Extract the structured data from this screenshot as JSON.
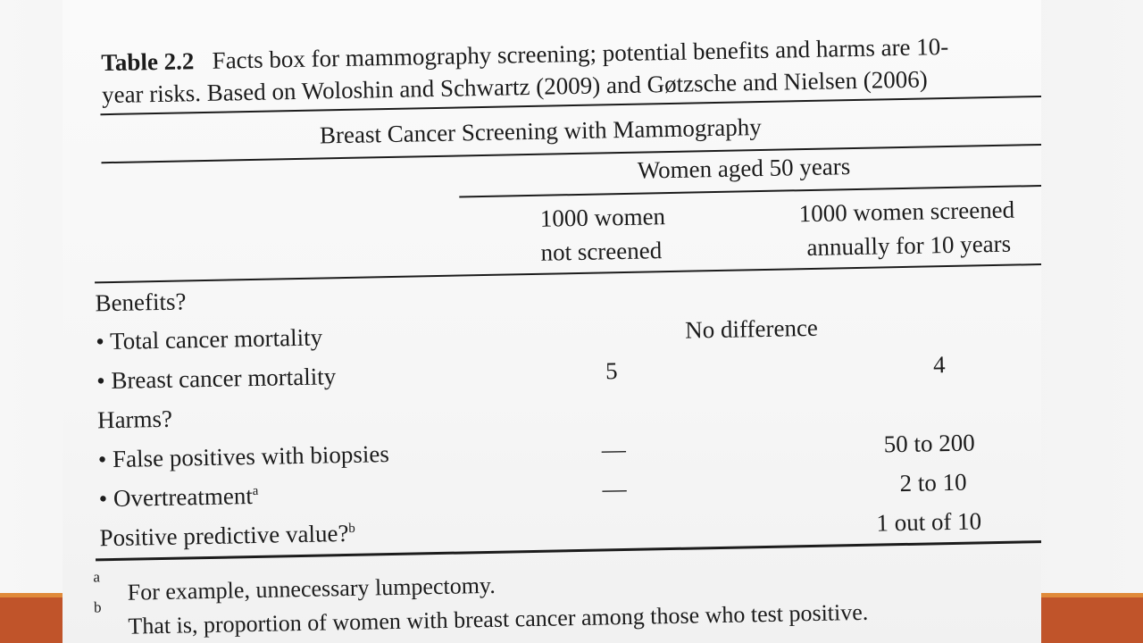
{
  "caption": {
    "label": "Table 2.2",
    "line1": "Facts box for mammography screening; potential benefits and harms are 10-",
    "line2": "year risks. Based on Woloshin and Schwartz (2009) and Gøtzsche and Nielsen (2006)"
  },
  "table": {
    "title": "Breast Cancer Screening with Mammography",
    "group_header": "Women aged 50 years",
    "col1_line1": "1000 women",
    "col1_line2": "not screened",
    "col2_line1": "1000 women screened",
    "col2_line2": "annually for 10 years",
    "benefits_header": "Benefits?",
    "total_mortality_label": "• Total cancer mortality",
    "total_mortality_value": "No difference",
    "breast_mortality_label": "• Breast cancer mortality",
    "breast_mortality_not_screened": "5",
    "breast_mortality_screened": "4",
    "harms_header": "Harms?",
    "false_pos_label": "• False positives with biopsies",
    "false_pos_not_screened": "—",
    "false_pos_screened": "50 to 200",
    "overtreatment_label": "• Overtreatment",
    "overtreatment_mark": "a",
    "overtreatment_not_screened": "—",
    "overtreatment_screened": "2 to 10",
    "ppv_label": "Positive predictive value?",
    "ppv_mark": "b",
    "ppv_screened": "1 out of 10"
  },
  "footnotes": {
    "a_mark": "a",
    "a_text": "For example, unnecessary lumpectomy.",
    "b_mark": "b",
    "b_text": "That is, proportion of women with breast cancer among those who test positive."
  },
  "colors": {
    "accent_bar": "#c0542a",
    "accent_line": "#e08a3a",
    "ink": "#1c1c1c",
    "paper": "#f6f6f6"
  }
}
